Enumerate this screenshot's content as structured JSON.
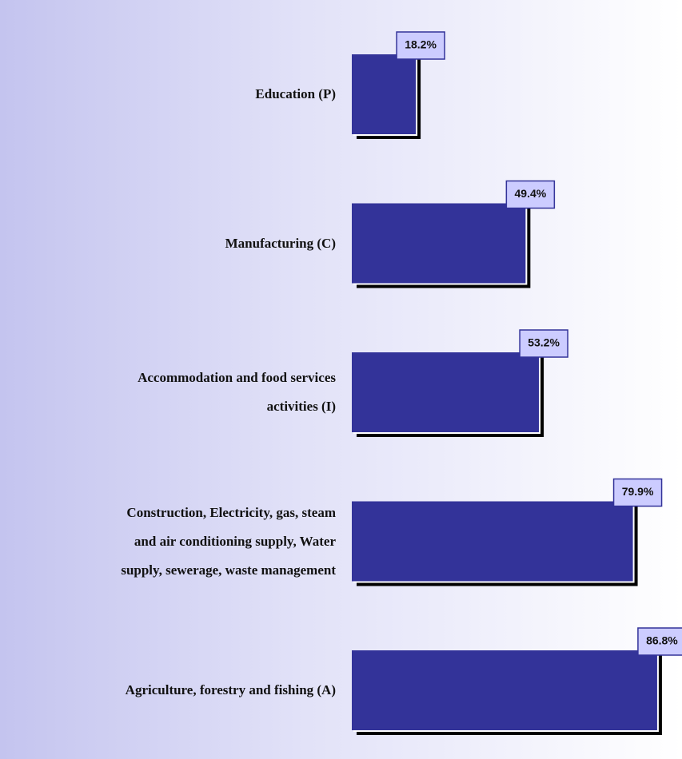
{
  "chart_data": {
    "type": "bar",
    "orientation": "horizontal",
    "categories": [
      "Education (P)",
      "Manufacturing  (C)",
      "Accommodation and food services\nactivities (I)",
      "Construction, Electricity, gas, steam\nand air conditioning supply, Water\nsupply, sewerage, waste management",
      "Agriculture, forestry and fishing (A)"
    ],
    "values": [
      18.2,
      49.4,
      53.2,
      79.9,
      86.8
    ],
    "value_labels": [
      "18.2%",
      "49.4%",
      "53.2%",
      "79.9%",
      "86.8%"
    ],
    "color": "#333399"
  }
}
